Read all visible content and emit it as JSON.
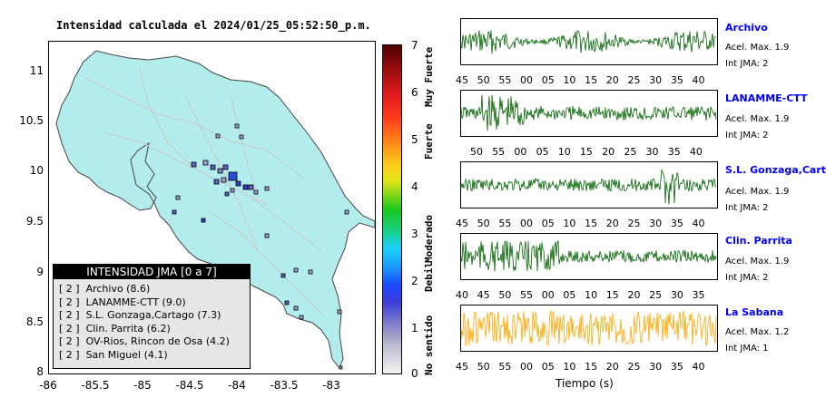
{
  "title": "Intensidad calculada el 2024/01/25_05:52:50_p.m.",
  "map": {
    "y_ticks": [
      "11",
      "10.5",
      "10",
      "9.5",
      "9",
      "8.5",
      "8"
    ],
    "x_ticks": [
      "-86",
      "-85.5",
      "-85",
      "-84.5",
      "-84",
      "-83.5",
      "-83"
    ],
    "land_color": "#b3ecec"
  },
  "legend": {
    "title": "INTENSIDAD JMA [0 a 7]",
    "items": [
      "[ 2 ]  Archivo (8.6)",
      "[ 2 ]  LANAMME-CTT (9.0)",
      "[ 2 ]  S.L. Gonzaga,Cartago (7.3)",
      "[ 2 ]  Clin. Parrita (6.2)",
      "[ 2 ]  OV-Rios, Rincon de Osa (4.2)",
      "[ 2 ]  San Miguel (4.1)"
    ]
  },
  "colorbar": {
    "ticks": [
      "7",
      "6",
      "5",
      "4",
      "3",
      "2",
      "1",
      "0"
    ],
    "labels": [
      "Muy Fuerte",
      "Fuerte",
      "Moderado",
      "Debil",
      "No sentido"
    ]
  },
  "traces": [
    {
      "name": "Archivo",
      "acel": "Acel. Max. 1.9",
      "int": "Int JMA: 2",
      "color": "#006400",
      "ticks": [
        "45",
        "50",
        "55",
        "00",
        "05",
        "10",
        "15",
        "20",
        "25",
        "30",
        "35",
        "40"
      ]
    },
    {
      "name": "LANAMME-CTT",
      "acel": "Acel. Max. 1.9",
      "int": "Int JMA: 2",
      "color": "#006400",
      "ticks": [
        "50",
        "55",
        "00",
        "05",
        "10",
        "15",
        "20",
        "25",
        "30",
        "35",
        "40"
      ]
    },
    {
      "name": "S.L. Gonzaga,Cartago",
      "acel": "Acel. Max. 1.9",
      "int": "Int JMA: 2",
      "color": "#006400",
      "ticks": [
        "45",
        "50",
        "55",
        "00",
        "05",
        "10",
        "15",
        "20",
        "25",
        "30",
        "35",
        "40"
      ]
    },
    {
      "name": "Clin. Parrita",
      "acel": "Acel. Max. 1.9",
      "int": "Int JMA: 2",
      "color": "#006400",
      "ticks": [
        "40",
        "45",
        "50",
        "55",
        "00",
        "05",
        "10",
        "15",
        "20",
        "25",
        "30",
        "35"
      ]
    },
    {
      "name": "La Sabana",
      "acel": "Acel. Max. 1.2",
      "int": "Int JMA: 1",
      "color": "#ffa500",
      "ticks": [
        "45",
        "50",
        "55",
        "00",
        "05",
        "10",
        "15",
        "20",
        "25",
        "30",
        "35",
        "40"
      ]
    }
  ],
  "xlabel": "Tiempo (s)"
}
